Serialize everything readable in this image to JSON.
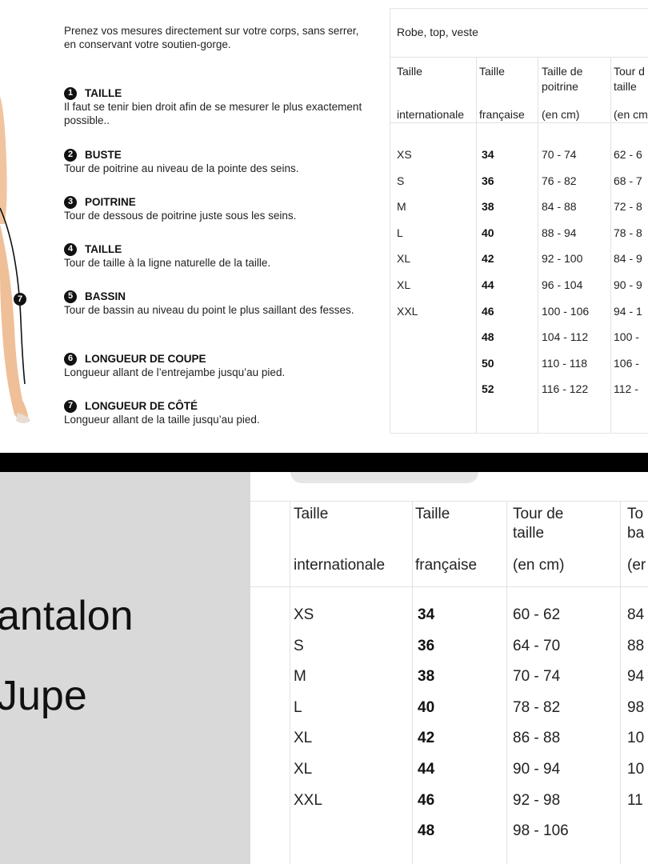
{
  "guide": {
    "intro": "Prenez vos mesures directement sur votre corps, sans serrer, en conservant votre soutien-gorge.",
    "steps": [
      {
        "num": "1",
        "title": "TAILLE",
        "text": "Il faut se tenir bien droit afin de se mesurer le plus exactement possible.."
      },
      {
        "num": "2",
        "title": "BUSTE",
        "text": "Tour de poitrine au niveau de la pointe des seins."
      },
      {
        "num": "3",
        "title": "POITRINE",
        "text": "Tour de dessous de poitrine juste sous les seins."
      },
      {
        "num": "4",
        "title": "TAILLE",
        "text": "Tour de taille à la ligne naturelle de la taille."
      },
      {
        "num": "5",
        "title": "BASSIN",
        "text": "Tour de bassin au niveau du point le plus saillant des fesses."
      },
      {
        "num": "6",
        "title": "LONGUEUR DE COUPE",
        "text": "Longueur allant de l’entrejambe jusqu’au pied."
      },
      {
        "num": "7",
        "title": "LONGUEUR DE CÔTÉ",
        "text": "Longueur allant de la taille jusqu’au pied."
      }
    ],
    "figure_marker": "7"
  },
  "top_table": {
    "title": "Robe, top, veste",
    "headers": [
      {
        "l1": "Taille",
        "l2": "",
        "l3": "internationale"
      },
      {
        "l1": "Taille",
        "l2": "",
        "l3": "française"
      },
      {
        "l1": "Taille de",
        "l2": "poitrine",
        "l3": "(en cm)"
      },
      {
        "l1": "Tour d",
        "l2": "taille",
        "l3": "(en cm"
      }
    ],
    "rows": [
      [
        "XS",
        "34",
        "70 - 74",
        "62 - 6"
      ],
      [
        "S",
        "36",
        "76 - 82",
        "68 - 7"
      ],
      [
        "M",
        "38",
        "84 - 88",
        "72 - 8"
      ],
      [
        "L",
        "40",
        "88 - 94",
        "78 - 8"
      ],
      [
        "XL",
        "42",
        "92 - 100",
        "84 - 9"
      ],
      [
        "XL",
        "44",
        "96 - 104",
        "90 - 9"
      ],
      [
        "XXL",
        "46",
        "100 - 106",
        "94 - 1"
      ],
      [
        "",
        "48",
        "104 - 112",
        "100 - "
      ],
      [
        "",
        "50",
        "110 - 118",
        "106 - "
      ],
      [
        "",
        "52",
        "116 - 122",
        "112 - "
      ]
    ]
  },
  "bottom": {
    "labels": [
      "antalon",
      "Jupe"
    ],
    "headers": [
      {
        "l1": "Taille",
        "l2": "",
        "l3": "internationale"
      },
      {
        "l1": "Taille",
        "l2": "",
        "l3": "française"
      },
      {
        "l1": "Tour de",
        "l2": "taille",
        "l3": "(en cm)"
      },
      {
        "l1": "To",
        "l2": "ba",
        "l3": "(er"
      }
    ],
    "rows": [
      [
        "XS",
        "34",
        "60 - 62",
        "84"
      ],
      [
        "S",
        "36",
        "64 - 70",
        "88"
      ],
      [
        "M",
        "38",
        "70 - 74",
        "94"
      ],
      [
        "L",
        "40",
        "78 - 82",
        "98"
      ],
      [
        "XL",
        "42",
        "86 - 88",
        "10"
      ],
      [
        "XL",
        "44",
        "90 - 94",
        "10"
      ],
      [
        "XXL",
        "46",
        "92 - 98",
        "11"
      ],
      [
        "",
        "48",
        "98 - 106",
        ""
      ]
    ]
  }
}
